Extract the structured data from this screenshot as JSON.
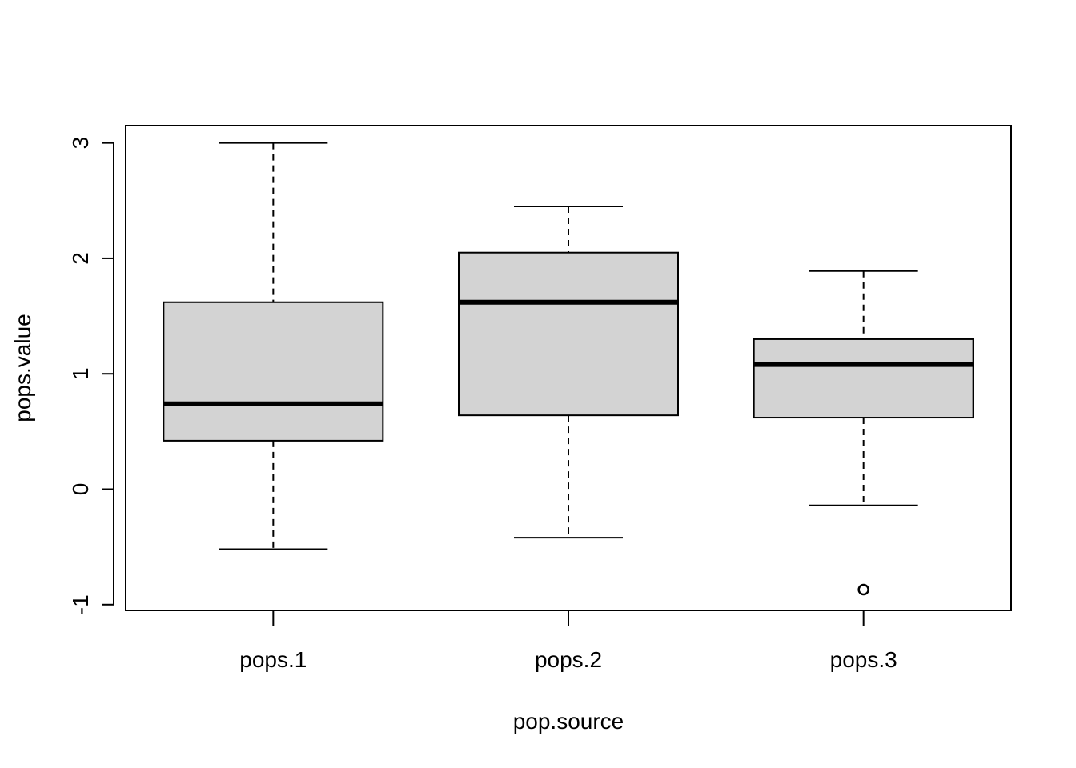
{
  "chart_data": {
    "type": "boxplot",
    "title": "",
    "xlabel": "pop.source",
    "ylabel": "pops.value",
    "ylim": [
      -1.05,
      3.15
    ],
    "yticks": [
      -1,
      0,
      1,
      2,
      3
    ],
    "ytick_labels": [
      "-1",
      "0",
      "1",
      "2",
      "3"
    ],
    "grid": false,
    "box_fill": "#d3d3d3",
    "line_color": "#000000",
    "categories": [
      "pops.1",
      "pops.2",
      "pops.3"
    ],
    "boxes": [
      {
        "category": "pops.1",
        "whisker_low": -0.52,
        "q1": 0.42,
        "median": 0.74,
        "q3": 1.62,
        "whisker_high": 3.0,
        "outliers": []
      },
      {
        "category": "pops.2",
        "whisker_low": -0.42,
        "q1": 0.64,
        "median": 1.62,
        "q3": 2.05,
        "whisker_high": 2.45,
        "outliers": []
      },
      {
        "category": "pops.3",
        "whisker_low": -0.14,
        "q1": 0.62,
        "median": 1.08,
        "q3": 1.3,
        "whisker_high": 1.89,
        "outliers": [
          -0.87
        ]
      }
    ]
  }
}
